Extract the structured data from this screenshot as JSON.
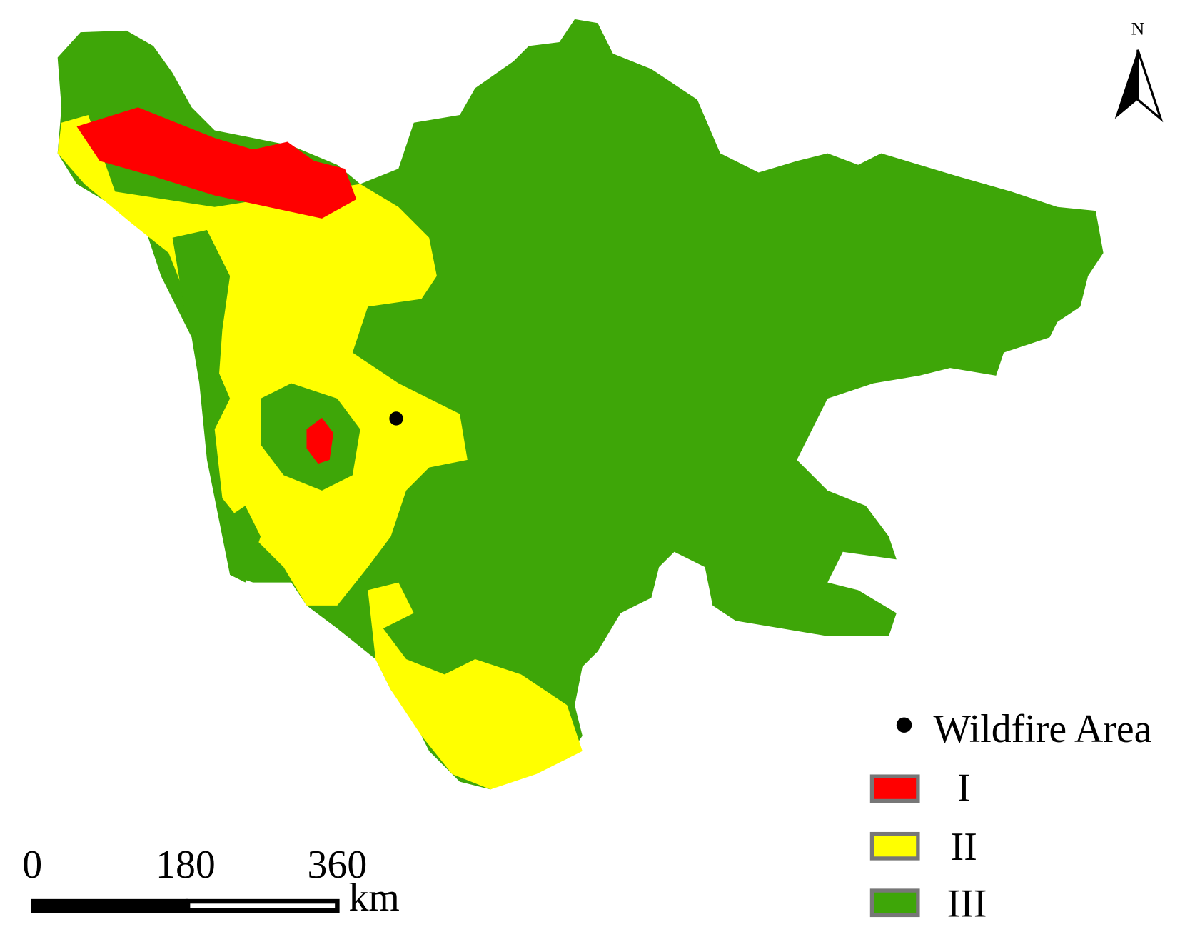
{
  "north": "N",
  "legend": [
    "Wildfire Area",
    "I",
    "II",
    "III"
  ],
  "scale_bar": {
    "ticks": [
      0,
      180,
      360
    ],
    "unit": "km"
  }
}
